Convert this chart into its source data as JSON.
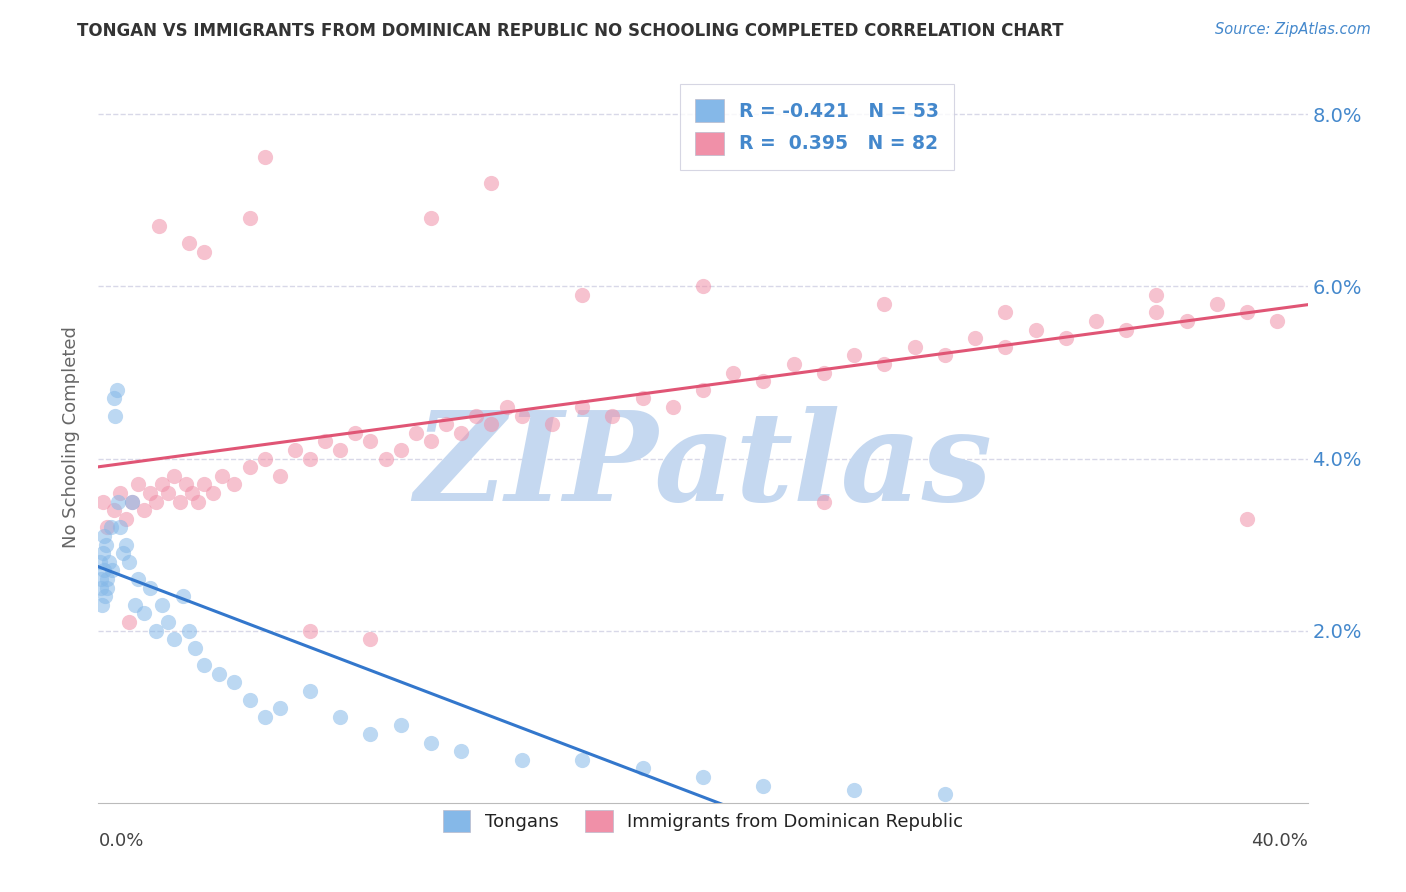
{
  "title": "TONGAN VS IMMIGRANTS FROM DOMINICAN REPUBLIC NO SCHOOLING COMPLETED CORRELATION CHART",
  "source": "Source: ZipAtlas.com",
  "ylabel": "No Schooling Completed",
  "xmin": 0.0,
  "xmax": 40.0,
  "ymin": 0.0,
  "ymax": 8.5,
  "ytick_positions": [
    2,
    4,
    6,
    8
  ],
  "ytick_labels": [
    "2.0%",
    "4.0%",
    "6.0%",
    "8.0%"
  ],
  "xtick_label_left": "0.0%",
  "xtick_label_right": "40.0%",
  "tongans_color": "#85b8e8",
  "dr_color": "#f090a8",
  "trend_blue_color": "#3377cc",
  "trend_pink_color": "#e05575",
  "grid_color": "#d8d8e8",
  "background_color": "#ffffff",
  "watermark_text": "ZIPatlas",
  "watermark_color": "#c5d8f0",
  "legend1_blue_label": "R = -0.421   N = 53",
  "legend1_pink_label": "R =  0.395   N = 82",
  "legend2_blue": "Tongans",
  "legend2_pink": "Immigrants from Dominican Republic",
  "source_color": "#4488cc",
  "right_tick_color": "#4488cc",
  "title_color": "#333333",
  "axis_label_color": "#666666",
  "tongans_x": [
    0.05,
    0.08,
    0.1,
    0.12,
    0.15,
    0.18,
    0.2,
    0.22,
    0.25,
    0.28,
    0.3,
    0.35,
    0.4,
    0.45,
    0.5,
    0.55,
    0.6,
    0.65,
    0.7,
    0.8,
    0.9,
    1.0,
    1.1,
    1.2,
    1.3,
    1.5,
    1.7,
    1.9,
    2.1,
    2.3,
    2.5,
    2.8,
    3.0,
    3.2,
    3.5,
    4.0,
    4.5,
    5.0,
    5.5,
    6.0,
    7.0,
    8.0,
    9.0,
    10.0,
    11.0,
    12.0,
    14.0,
    16.0,
    18.0,
    20.0,
    22.0,
    25.0,
    28.0
  ],
  "tongans_y": [
    2.8,
    2.5,
    2.6,
    2.3,
    2.9,
    2.7,
    3.1,
    2.4,
    3.0,
    2.6,
    2.5,
    2.8,
    3.2,
    2.7,
    4.7,
    4.5,
    4.8,
    3.5,
    3.2,
    2.9,
    3.0,
    2.8,
    3.5,
    2.3,
    2.6,
    2.2,
    2.5,
    2.0,
    2.3,
    2.1,
    1.9,
    2.4,
    2.0,
    1.8,
    1.6,
    1.5,
    1.4,
    1.2,
    1.0,
    1.1,
    1.3,
    1.0,
    0.8,
    0.9,
    0.7,
    0.6,
    0.5,
    0.5,
    0.4,
    0.3,
    0.2,
    0.15,
    0.1
  ],
  "dr_x": [
    0.15,
    0.3,
    0.5,
    0.7,
    0.9,
    1.1,
    1.3,
    1.5,
    1.7,
    1.9,
    2.1,
    2.3,
    2.5,
    2.7,
    2.9,
    3.1,
    3.3,
    3.5,
    3.8,
    4.1,
    4.5,
    5.0,
    5.5,
    6.0,
    6.5,
    7.0,
    7.5,
    8.0,
    8.5,
    9.0,
    9.5,
    10.0,
    10.5,
    11.0,
    11.5,
    12.0,
    12.5,
    13.0,
    13.5,
    14.0,
    15.0,
    16.0,
    17.0,
    18.0,
    19.0,
    20.0,
    21.0,
    22.0,
    23.0,
    24.0,
    25.0,
    26.0,
    27.0,
    28.0,
    29.0,
    30.0,
    31.0,
    32.0,
    33.0,
    34.0,
    35.0,
    36.0,
    37.0,
    38.0,
    39.0,
    5.5,
    13.0,
    5.0,
    3.0,
    2.0,
    3.5,
    11.0,
    16.0,
    20.0,
    26.0,
    30.0,
    35.0,
    7.0,
    9.0,
    24.0,
    38.0,
    1.0
  ],
  "dr_y": [
    3.5,
    3.2,
    3.4,
    3.6,
    3.3,
    3.5,
    3.7,
    3.4,
    3.6,
    3.5,
    3.7,
    3.6,
    3.8,
    3.5,
    3.7,
    3.6,
    3.5,
    3.7,
    3.6,
    3.8,
    3.7,
    3.9,
    4.0,
    3.8,
    4.1,
    4.0,
    4.2,
    4.1,
    4.3,
    4.2,
    4.0,
    4.1,
    4.3,
    4.2,
    4.4,
    4.3,
    4.5,
    4.4,
    4.6,
    4.5,
    4.4,
    4.6,
    4.5,
    4.7,
    4.6,
    4.8,
    5.0,
    4.9,
    5.1,
    5.0,
    5.2,
    5.1,
    5.3,
    5.2,
    5.4,
    5.3,
    5.5,
    5.4,
    5.6,
    5.5,
    5.7,
    5.6,
    5.8,
    5.7,
    5.6,
    7.5,
    7.2,
    6.8,
    6.5,
    6.7,
    6.4,
    6.8,
    5.9,
    6.0,
    5.8,
    5.7,
    5.9,
    2.0,
    1.9,
    3.5,
    3.3,
    2.1
  ]
}
